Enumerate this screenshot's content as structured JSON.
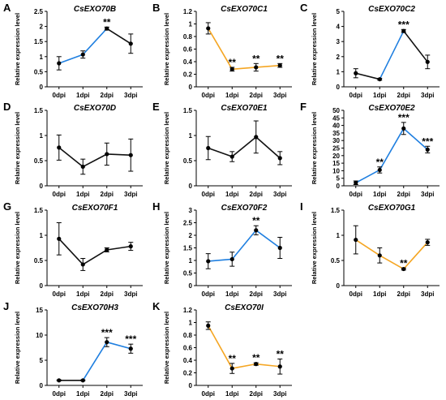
{
  "colors": {
    "blue": "#1f7fe0",
    "orange": "#f5a623",
    "black": "#111111"
  },
  "chart_data": [
    {
      "letter": "A",
      "title": "CsEXO70B",
      "type": "line",
      "categories": [
        "0dpi",
        "1dpi",
        "2dpi",
        "3dpi"
      ],
      "values": [
        0.78,
        1.07,
        1.93,
        1.43
      ],
      "errors": [
        0.22,
        0.12,
        0.05,
        0.32
      ],
      "segment_colors": [
        "blue",
        "blue",
        "black"
      ],
      "stars": [
        "",
        "",
        "**",
        ""
      ],
      "ylabel": "Relative expression level",
      "ylim": [
        0,
        2.5
      ],
      "yticks": [
        0,
        0.5,
        1,
        1.5,
        2,
        2.5
      ],
      "ytick_labels": [
        "0",
        "0.5",
        "1",
        "1.5",
        "2",
        "2.5"
      ]
    },
    {
      "letter": "B",
      "title": "CsEXO70C1",
      "type": "line",
      "categories": [
        "0dpi",
        "1dpi",
        "2dpi",
        "3dpi"
      ],
      "values": [
        0.93,
        0.28,
        0.31,
        0.34
      ],
      "errors": [
        0.09,
        0.03,
        0.06,
        0.03
      ],
      "segment_colors": [
        "orange",
        "orange",
        "orange"
      ],
      "stars": [
        "",
        "**",
        "**",
        "**"
      ],
      "ylabel": "Relative expression level",
      "ylim": [
        0,
        1.2
      ],
      "yticks": [
        0,
        0.2,
        0.4,
        0.6,
        0.8,
        1,
        1.2
      ],
      "ytick_labels": [
        "0",
        "0.2",
        "0.4",
        "0.6",
        "0.8",
        "1",
        "1.2"
      ]
    },
    {
      "letter": "C",
      "title": "CsEXO70C2",
      "type": "line",
      "categories": [
        "0dpi",
        "1dpi",
        "2dpi",
        "3dpi"
      ],
      "values": [
        0.9,
        0.5,
        3.7,
        1.65
      ],
      "errors": [
        0.3,
        0.06,
        0.1,
        0.45
      ],
      "segment_colors": [
        "black",
        "blue",
        "black"
      ],
      "stars": [
        "",
        "",
        "***",
        ""
      ],
      "ylabel": "Relative expression level",
      "ylim": [
        0,
        5
      ],
      "yticks": [
        0,
        1,
        2,
        3,
        4,
        5
      ],
      "ytick_labels": [
        "0",
        "1",
        "2",
        "3",
        "4",
        "5"
      ]
    },
    {
      "letter": "D",
      "title": "CsEXO70D",
      "type": "line",
      "categories": [
        "0dpi",
        "1dpi",
        "2dpi",
        "3dpi"
      ],
      "values": [
        0.76,
        0.38,
        0.63,
        0.61
      ],
      "errors": [
        0.25,
        0.15,
        0.22,
        0.32
      ],
      "segment_colors": [
        "black",
        "black",
        "black"
      ],
      "stars": [
        "",
        "",
        "",
        ""
      ],
      "ylabel": "Relative expression level",
      "ylim": [
        0,
        1.5
      ],
      "yticks": [
        0,
        0.5,
        1,
        1.5
      ],
      "ytick_labels": [
        "0",
        "0.5",
        "1",
        "1.5"
      ]
    },
    {
      "letter": "E",
      "title": "CsEXO70E1",
      "type": "line",
      "categories": [
        "0dpi",
        "1dpi",
        "2dpi",
        "3dpi"
      ],
      "values": [
        0.75,
        0.58,
        0.97,
        0.55
      ],
      "errors": [
        0.23,
        0.1,
        0.32,
        0.13
      ],
      "segment_colors": [
        "black",
        "black",
        "black"
      ],
      "stars": [
        "",
        "",
        "",
        ""
      ],
      "ylabel": "Relative expression level",
      "ylim": [
        0,
        1.5
      ],
      "yticks": [
        0,
        0.5,
        1,
        1.5
      ],
      "ytick_labels": [
        "0",
        "0.5",
        "1",
        "1.5"
      ]
    },
    {
      "letter": "F",
      "title": "CsEXO70E2",
      "type": "line",
      "categories": [
        "0dpi",
        "1dpi",
        "2dpi",
        "3dpi"
      ],
      "values": [
        2,
        10.5,
        38,
        24
      ],
      "errors": [
        1.2,
        2,
        4,
        2.2
      ],
      "segment_colors": [
        "blue",
        "blue",
        "blue"
      ],
      "stars": [
        "",
        "**",
        "***",
        "***"
      ],
      "ylabel": "Relative expression level",
      "ylim": [
        0,
        50
      ],
      "yticks": [
        0,
        5,
        10,
        15,
        20,
        25,
        30,
        35,
        40,
        45,
        50
      ],
      "ytick_labels": [
        "0",
        "5",
        "10",
        "15",
        "20",
        "25",
        "30",
        "35",
        "40",
        "45",
        "50"
      ]
    },
    {
      "letter": "G",
      "title": "CsEXO70F1",
      "type": "line",
      "categories": [
        "0dpi",
        "1dpi",
        "2dpi",
        "3dpi"
      ],
      "values": [
        0.93,
        0.42,
        0.71,
        0.78
      ],
      "errors": [
        0.32,
        0.12,
        0.04,
        0.08
      ],
      "segment_colors": [
        "black",
        "black",
        "black"
      ],
      "stars": [
        "",
        "",
        "",
        ""
      ],
      "ylabel": "Relative expression level",
      "ylim": [
        0,
        1.5
      ],
      "yticks": [
        0,
        0.5,
        1,
        1.5
      ],
      "ytick_labels": [
        "0",
        "0.5",
        "1",
        "1.5"
      ]
    },
    {
      "letter": "H",
      "title": "CsEXO70F2",
      "type": "line",
      "categories": [
        "0dpi",
        "1dpi",
        "2dpi",
        "3dpi"
      ],
      "values": [
        0.97,
        1.05,
        2.2,
        1.5
      ],
      "errors": [
        0.3,
        0.28,
        0.18,
        0.42
      ],
      "segment_colors": [
        "blue",
        "blue",
        "blue"
      ],
      "stars": [
        "",
        "",
        "**",
        ""
      ],
      "ylabel": "Relative expression level",
      "ylim": [
        0,
        3
      ],
      "yticks": [
        0,
        0.5,
        1,
        1.5,
        2,
        2.5,
        3
      ],
      "ytick_labels": [
        "0",
        "0.5",
        "1",
        "1.5",
        "2",
        "2.5",
        "3"
      ]
    },
    {
      "letter": "I",
      "title": "CsEXO70G1",
      "type": "line",
      "categories": [
        "0dpi",
        "1dpi",
        "2dpi",
        "3dpi"
      ],
      "values": [
        0.91,
        0.6,
        0.33,
        0.86
      ],
      "errors": [
        0.28,
        0.15,
        0.02,
        0.06
      ],
      "segment_colors": [
        "orange",
        "orange",
        "orange"
      ],
      "stars": [
        "",
        "",
        "**",
        ""
      ],
      "ylabel": "Relative expression level",
      "ylim": [
        0,
        1.5
      ],
      "yticks": [
        0,
        0.5,
        1,
        1.5
      ],
      "ytick_labels": [
        "0",
        "0.5",
        "1",
        "1.5"
      ]
    },
    {
      "letter": "J",
      "title": "CsEXO70H3",
      "type": "line",
      "categories": [
        "0dpi",
        "1dpi",
        "2dpi",
        "3dpi"
      ],
      "values": [
        1,
        1,
        8.6,
        7.3
      ],
      "errors": [
        0.1,
        0.1,
        0.9,
        0.9
      ],
      "segment_colors": [
        "black",
        "blue",
        "blue"
      ],
      "stars": [
        "",
        "",
        "***",
        "***"
      ],
      "ylabel": "Relative expression level",
      "ylim": [
        0,
        15
      ],
      "yticks": [
        0,
        5,
        10,
        15
      ],
      "ytick_labels": [
        "0",
        "5",
        "10",
        "15"
      ]
    },
    {
      "letter": "K",
      "title": "CsEXO70I",
      "type": "line",
      "categories": [
        "0dpi",
        "1dpi",
        "2dpi",
        "3dpi"
      ],
      "values": [
        0.95,
        0.27,
        0.34,
        0.3
      ],
      "errors": [
        0.06,
        0.08,
        0.02,
        0.12
      ],
      "segment_colors": [
        "orange",
        "orange",
        "orange"
      ],
      "stars": [
        "",
        "**",
        "**",
        "**"
      ],
      "ylabel": "Relative expression level",
      "ylim": [
        0,
        1.2
      ],
      "yticks": [
        0,
        0.2,
        0.4,
        0.6,
        0.8,
        1,
        1.2
      ],
      "ytick_labels": [
        "0",
        "0.2",
        "0.4",
        "0.6",
        "0.8",
        "1",
        "1.2"
      ]
    }
  ]
}
